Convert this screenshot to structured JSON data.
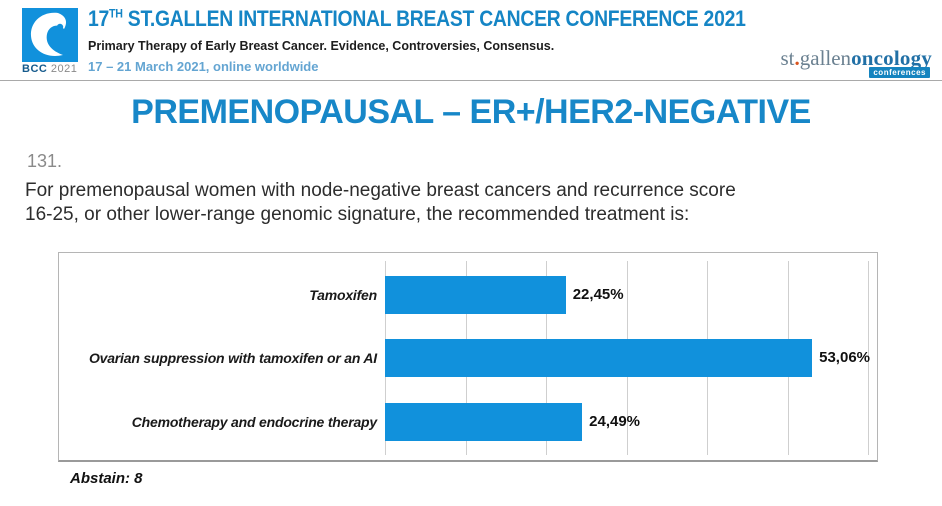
{
  "header": {
    "logo_caption_bcc": "BCC",
    "logo_caption_year": "2021",
    "title_num": "17",
    "title_sup": "TH",
    "title_rest": " ST.GALLEN INTERNATIONAL BREAST CANCER CONFERENCE 2021",
    "subtitle": "Primary Therapy of Early Breast Cancer. Evidence, Controversies, Consensus.",
    "dates": "17 – 21 March 2021, online worldwide",
    "brand_st": "st",
    "brand_dot": ".",
    "brand_gallen": "gallen",
    "brand_oncology": "oncology",
    "brand_badge": "conferences"
  },
  "main_title": "PREMENOPAUSAL – ER+/HER2-NEGATIVE",
  "question": {
    "number": "131.",
    "lines": [
      "For premenopausal women with node-negative breast cancers and recurrence score",
      "16-25, or other lower-range genomic signature, the recommended treatment is:"
    ]
  },
  "chart_data": {
    "type": "bar",
    "orientation": "horizontal",
    "categories": [
      "Tamoxifen",
      "Ovarian suppression with tamoxifen or an AI",
      "Chemotherapy and endocrine therapy"
    ],
    "values": [
      22.45,
      53.06,
      24.49
    ],
    "value_labels": [
      "22,45%",
      "53,06%",
      "24,49%"
    ],
    "xlim": [
      0,
      60
    ],
    "grid_step": 10,
    "grid": true,
    "legend": false,
    "footnote": "Abstain: 8"
  },
  "colors": {
    "header_blue": "#1585c5",
    "title_blue": "#1787c8",
    "date_blue": "#64a5d2",
    "bar_blue": "#1191dc",
    "brand_orange": "#d9541e"
  }
}
